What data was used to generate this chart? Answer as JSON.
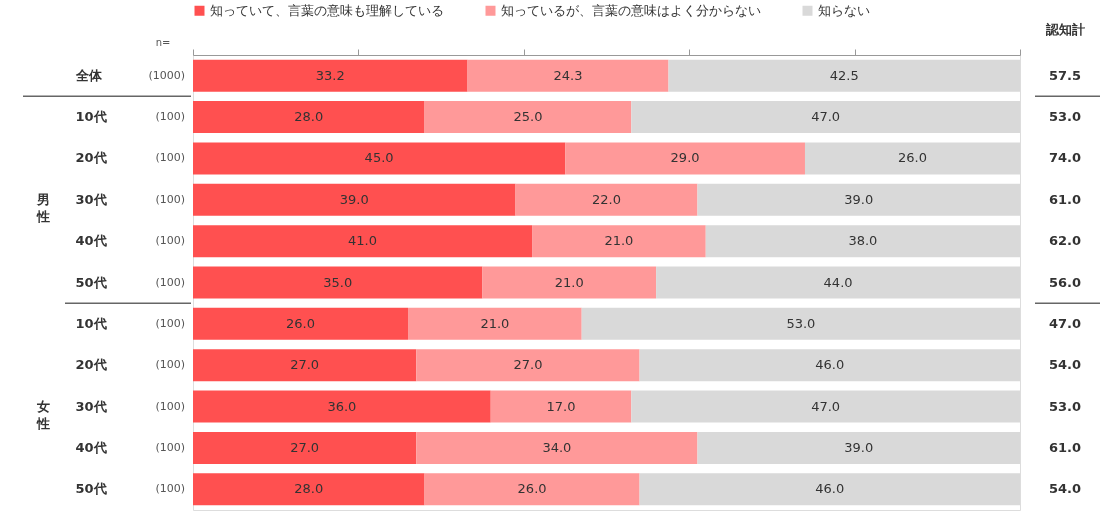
{
  "chart_data": {
    "type": "bar",
    "orientation": "horizontal",
    "stacked": true,
    "legend": "top",
    "grid": false,
    "tick_labels": "y",
    "categories": [
      "全体",
      "10代",
      "20代",
      "30代",
      "40代",
      "50代",
      "10代",
      "20代",
      "30代",
      "40代",
      "50代"
    ],
    "series": [
      {
        "name": "知っていて、言葉の意味も理解している",
        "color": "#ff5050",
        "values": [
          33.2,
          28.0,
          45.0,
          39.0,
          41.0,
          35.0,
          26.0,
          27.0,
          36.0,
          27.0,
          28.0
        ],
        "value_labels": [
          "33.2",
          "28.0",
          "45.0",
          "39.0",
          "41.0",
          "35.0",
          "26.0",
          "27.0",
          "36.0",
          "27.0",
          "28.0"
        ]
      },
      {
        "name": "知っているが、言葉の意味はよく分からない",
        "color": "#ff9999",
        "values": [
          24.3,
          25.0,
          29.0,
          22.0,
          21.0,
          21.0,
          21.0,
          27.0,
          17.0,
          34.0,
          26.0
        ],
        "value_labels": [
          "24.3",
          "25.0",
          "29.0",
          "22.0",
          "21.0",
          "21.0",
          "21.0",
          "27.0",
          "17.0",
          "34.0",
          "26.0"
        ]
      },
      {
        "name": "知らない",
        "color": "#d9d9d9",
        "values": [
          42.5,
          47.0,
          26.0,
          39.0,
          38.0,
          44.0,
          53.0,
          46.0,
          47.0,
          39.0,
          46.0
        ],
        "value_labels": [
          "42.5",
          "47.0",
          "26.0",
          "39.0",
          "38.0",
          "44.0",
          "53.0",
          "46.0",
          "47.0",
          "39.0",
          "46.0"
        ]
      }
    ],
    "xlim": [
      0,
      100
    ],
    "xticks": [
      {
        "value": 0,
        "label": null
      },
      {
        "value": 20,
        "label": null
      },
      {
        "value": 40,
        "label": null
      },
      {
        "value": 60,
        "label": null
      },
      {
        "value": 80,
        "label": null
      },
      {
        "value": 100,
        "label": null
      }
    ],
    "annotations": [
      "n=",
      "(1000)",
      "(100)",
      "(100)",
      "(100)",
      "(100)",
      "(100)",
      "(100)",
      "(100)",
      "(100)",
      "(100)",
      "(100)",
      "認知計",
      "57.5",
      "53.0",
      "74.0",
      "61.0",
      "62.0",
      "56.0",
      "47.0",
      "54.0",
      "53.0",
      "61.0",
      "54.0",
      "男性",
      "女性"
    ]
  }
}
